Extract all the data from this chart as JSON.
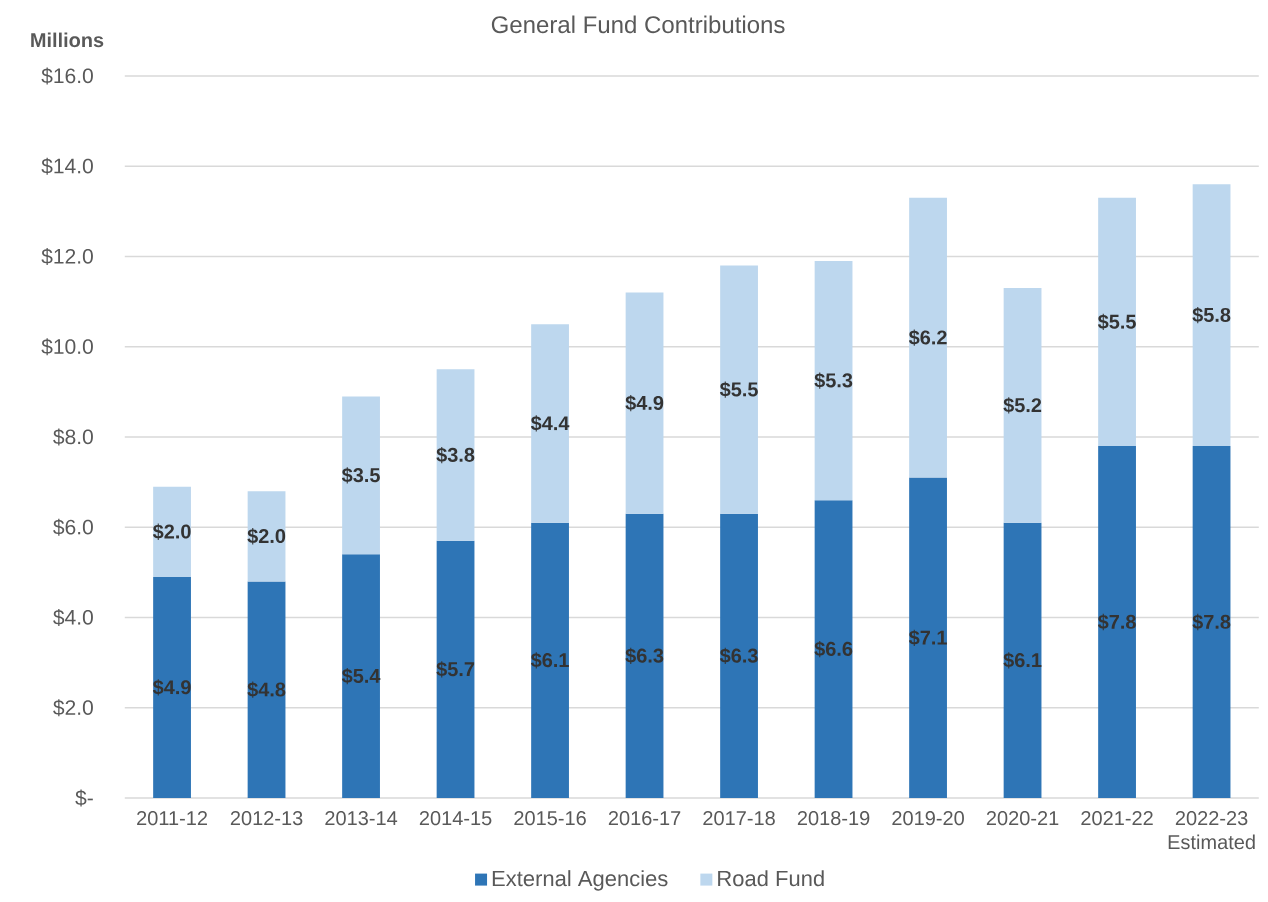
{
  "chart_data": {
    "type": "bar",
    "title": "General Fund Contributions",
    "ylabel": "Millions",
    "categories": [
      "2011-12",
      "2012-13",
      "2013-14",
      "2014-15",
      "2015-16",
      "2016-17",
      "2017-18",
      "2018-19",
      "2019-20",
      "2020-21",
      "2021-22",
      "2022-23 Estimated"
    ],
    "stacked": true,
    "series": [
      {
        "name": "External Agencies",
        "color": "#2e75b6",
        "values": [
          4.9,
          4.8,
          5.4,
          5.7,
          6.1,
          6.3,
          6.3,
          6.6,
          7.1,
          6.1,
          7.8,
          7.8
        ],
        "value_labels": [
          "$4.9",
          "$4.8",
          "$5.4",
          "$5.7",
          "$6.1",
          "$6.3",
          "$6.3",
          "$6.6",
          "$7.1",
          "$6.1",
          "$7.8",
          "$7.8"
        ]
      },
      {
        "name": "Road Fund",
        "color": "#bdd7ee",
        "values": [
          2.0,
          2.0,
          3.5,
          3.8,
          4.4,
          4.9,
          5.5,
          5.3,
          6.2,
          5.2,
          5.5,
          5.8
        ],
        "value_labels": [
          "$2.0",
          "$2.0",
          "$3.5",
          "$3.8",
          "$4.4",
          "$4.9",
          "$5.5",
          "$5.3",
          "$6.2",
          "$5.2",
          "$5.5",
          "$5.8"
        ]
      }
    ],
    "ylim": [
      0,
      16
    ],
    "yticks": [
      {
        "value": 0,
        "label": "$-"
      },
      {
        "value": 2,
        "label": "$2.0"
      },
      {
        "value": 4,
        "label": "$4.0"
      },
      {
        "value": 6,
        "label": "$6.0"
      },
      {
        "value": 8,
        "label": "$8.0"
      },
      {
        "value": 10,
        "label": "$10.0"
      },
      {
        "value": 12,
        "label": "$12.0"
      },
      {
        "value": 14,
        "label": "$14.0"
      },
      {
        "value": 16,
        "label": "$16.0"
      }
    ],
    "grid": "y",
    "legend": "bottom"
  }
}
